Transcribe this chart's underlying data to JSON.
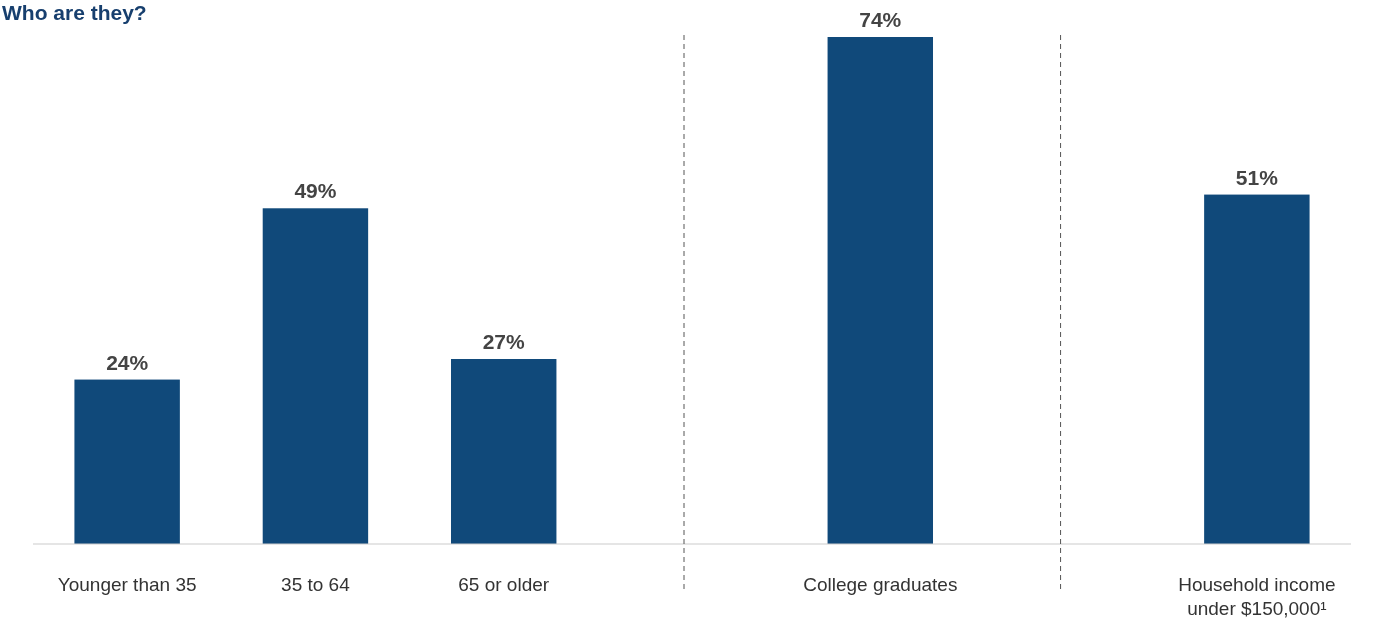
{
  "chart_data": {
    "type": "bar",
    "title": "Who are they?",
    "categories": [
      "Younger than 35",
      "35 to 64",
      "65 or older",
      null,
      "College graduates",
      null,
      "Household income under $150,000¹"
    ],
    "values": [
      24,
      49,
      27,
      null,
      74,
      null,
      51
    ],
    "value_labels": [
      "24%",
      "49%",
      "27%",
      null,
      "74%",
      null,
      "51%"
    ],
    "color": "#10497a"
  }
}
